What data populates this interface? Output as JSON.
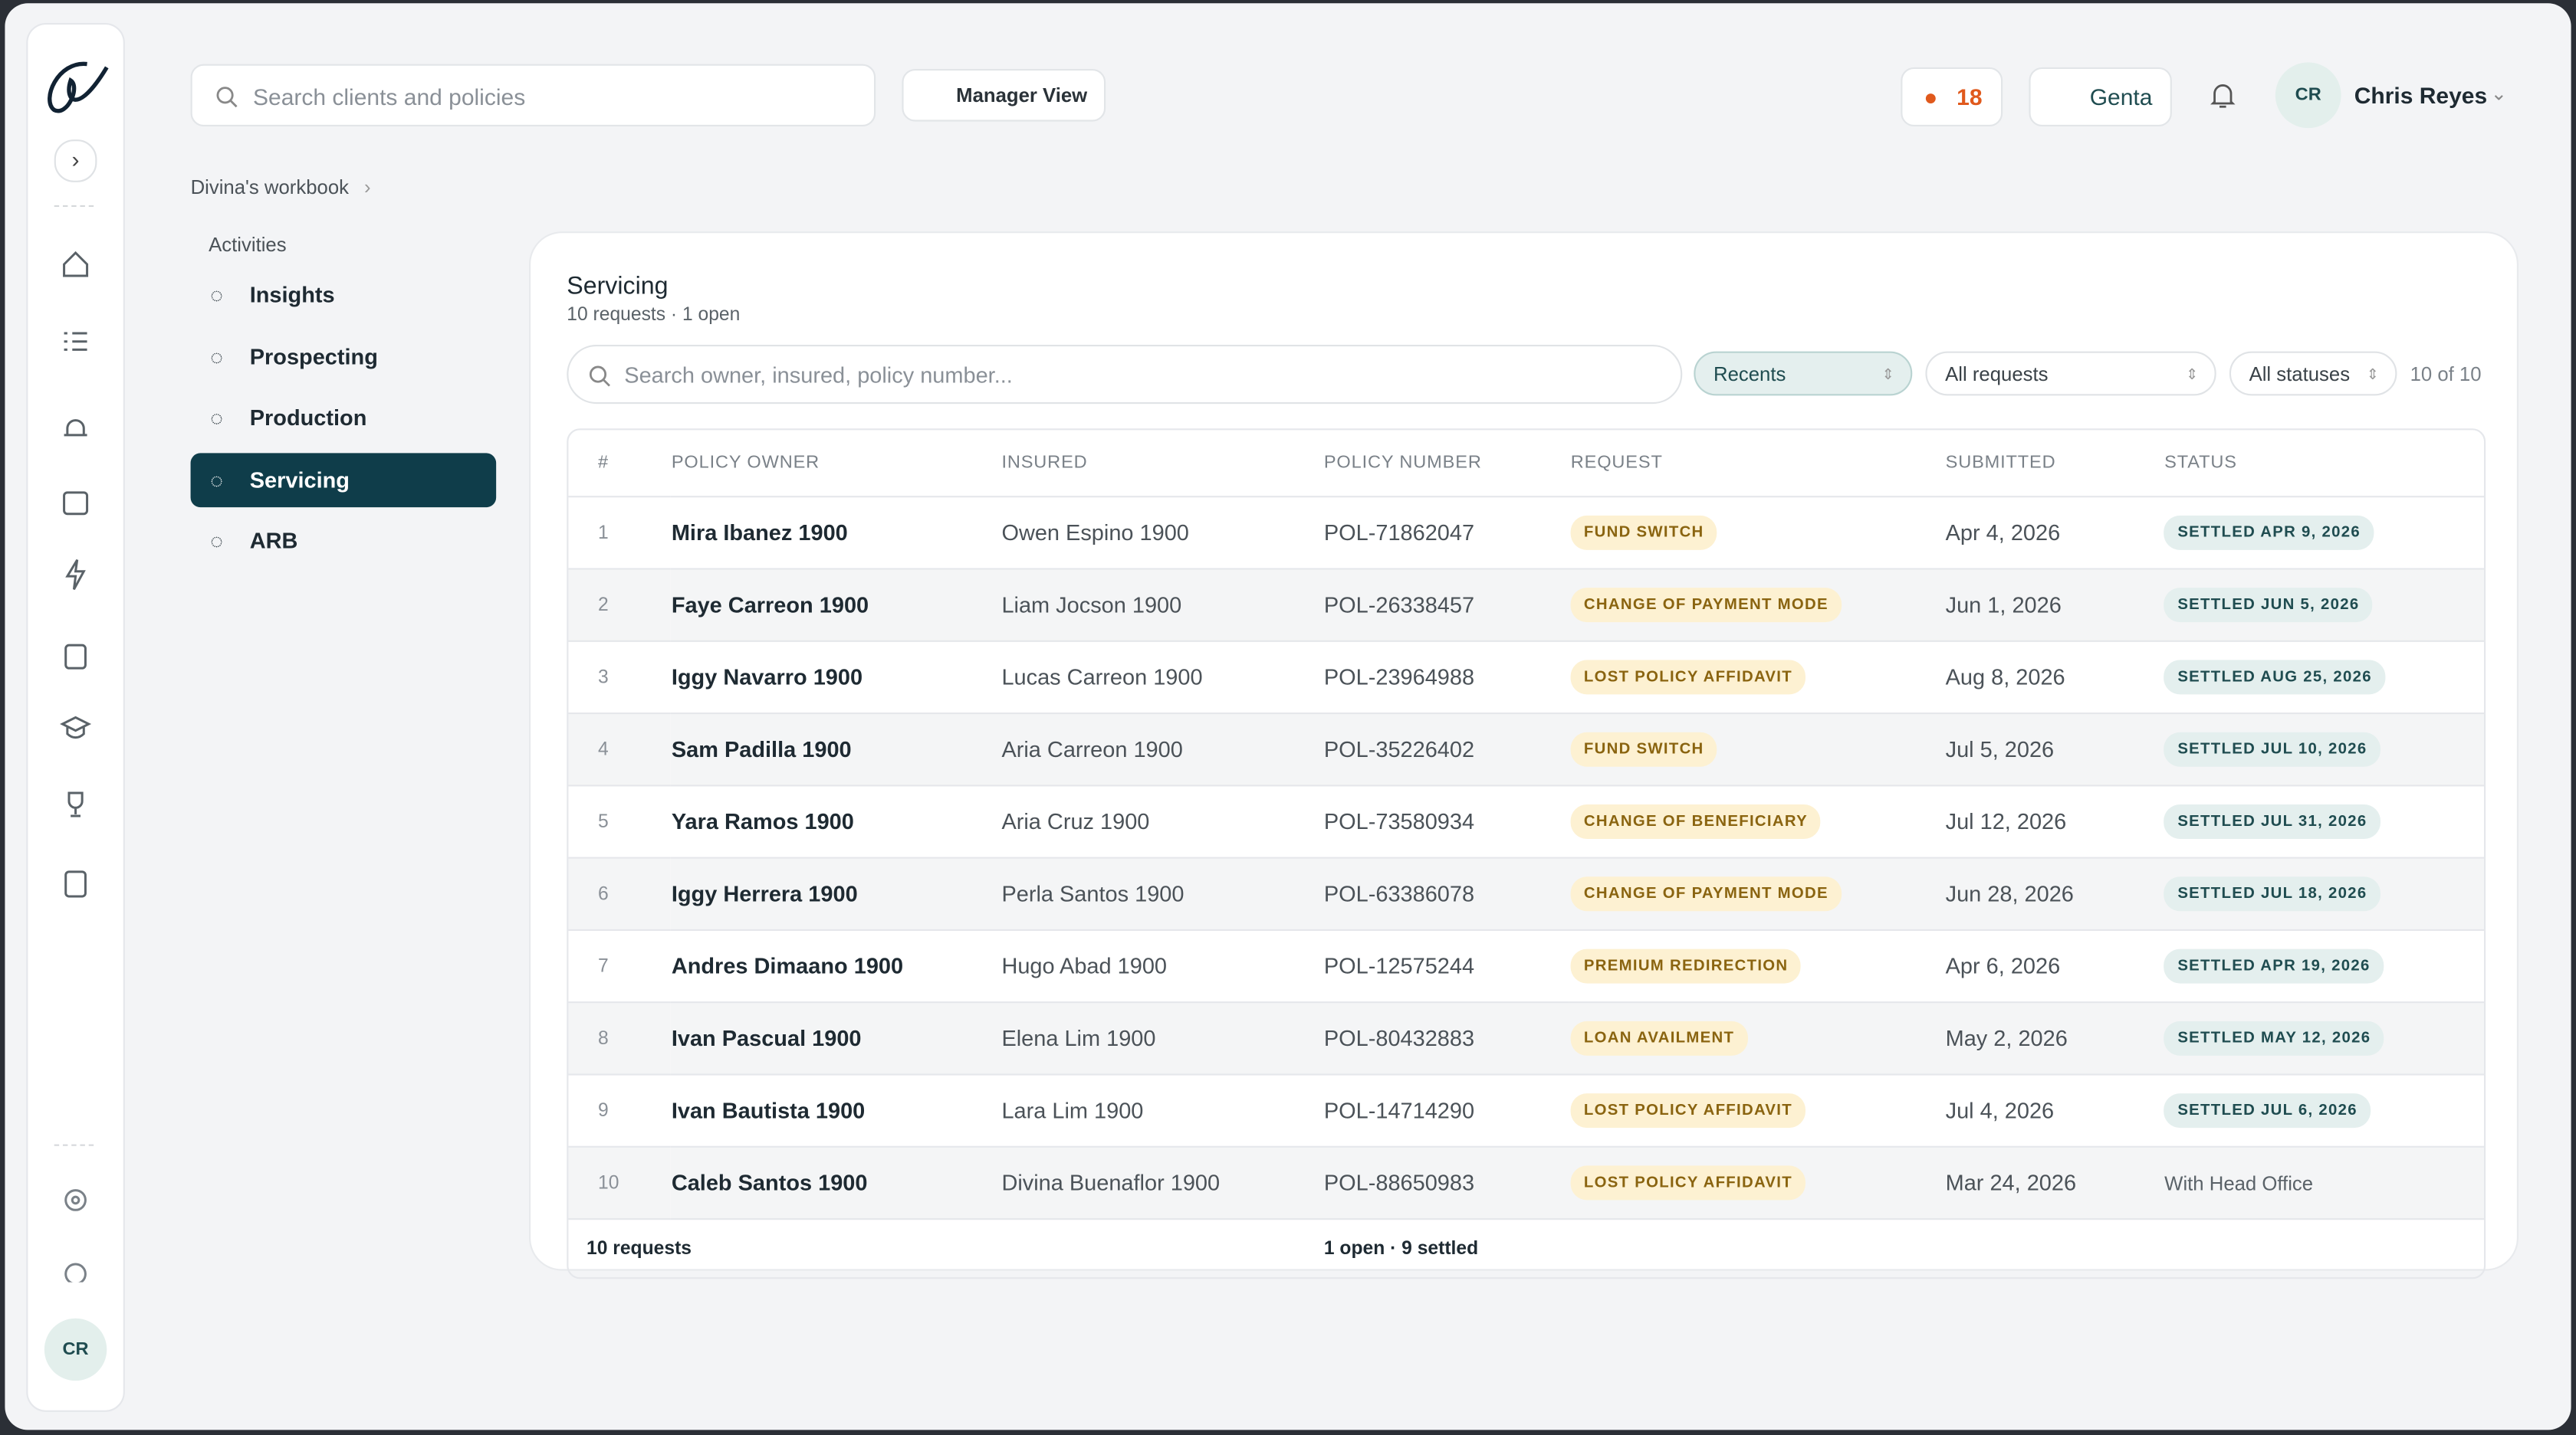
{
  "header": {
    "search_placeholder": "Search clients and policies",
    "manager_view": "Manager View",
    "streak": "18",
    "assistant": "Genta",
    "user_initials": "CR",
    "user_name": "Chris Reyes"
  },
  "rail": {
    "user_initials": "CR"
  },
  "breadcrumb": "Divina's workbook",
  "nav": {
    "section": "Activities",
    "items": [
      "Insights",
      "Prospecting",
      "Production",
      "Servicing",
      "ARB"
    ]
  },
  "panel": {
    "title": "Servicing",
    "subtitle": "10 requests · 1 open",
    "search_placeholder": "Search owner, insured, policy number...",
    "filters": [
      "Recents",
      "All requests",
      "All statuses"
    ],
    "count": "10 of 10",
    "table": {
      "headers": [
        "#",
        "POLICY OWNER",
        "INSURED",
        "POLICY NUMBER",
        "REQUEST",
        "SUBMITTED",
        "STATUS"
      ],
      "rows": [
        {
          "n": "1",
          "owner": "Mira Ibanez 1900",
          "insured": "Owen Espino 1900",
          "policy": "POL-71862047",
          "request": "FUND SWITCH",
          "submitted": "Apr 4, 2026",
          "status": {
            "settled": "SETTLED APR 9, 2026"
          }
        },
        {
          "n": "2",
          "owner": "Faye Carreon 1900",
          "insured": "Liam Jocson 1900",
          "policy": "POL-26338457",
          "request": "CHANGE OF PAYMENT MODE",
          "submitted": "Jun 1, 2026",
          "status": {
            "settled": "SETTLED JUN 5, 2026"
          }
        },
        {
          "n": "3",
          "owner": "Iggy Navarro 1900",
          "insured": "Lucas Carreon 1900",
          "policy": "POL-23964988",
          "request": "LOST POLICY AFFIDAVIT",
          "submitted": "Aug 8, 2026",
          "status": {
            "settled": "SETTLED AUG 25, 2026"
          }
        },
        {
          "n": "4",
          "owner": "Sam Padilla 1900",
          "insured": "Aria Carreon 1900",
          "policy": "POL-35226402",
          "request": "FUND SWITCH",
          "submitted": "Jul 5, 2026",
          "status": {
            "settled": "SETTLED JUL 10, 2026"
          }
        },
        {
          "n": "5",
          "owner": "Yara Ramos 1900",
          "insured": "Aria Cruz 1900",
          "policy": "POL-73580934",
          "request": "CHANGE OF BENEFICIARY",
          "submitted": "Jul 12, 2026",
          "status": {
            "settled": "SETTLED JUL 31, 2026"
          }
        },
        {
          "n": "6",
          "owner": "Iggy Herrera 1900",
          "insured": "Perla Santos 1900",
          "policy": "POL-63386078",
          "request": "CHANGE OF PAYMENT MODE",
          "submitted": "Jun 28, 2026",
          "status": {
            "settled": "SETTLED JUL 18, 2026"
          }
        },
        {
          "n": "7",
          "owner": "Andres Dimaano 1900",
          "insured": "Hugo Abad 1900",
          "policy": "POL-12575244",
          "request": "PREMIUM REDIRECTION",
          "submitted": "Apr 6, 2026",
          "status": {
            "settled": "SETTLED APR 19, 2026"
          }
        },
        {
          "n": "8",
          "owner": "Ivan Pascual 1900",
          "insured": "Elena Lim 1900",
          "policy": "POL-80432883",
          "request": "LOAN AVAILMENT",
          "submitted": "May 2, 2026",
          "status": {
            "settled": "SETTLED MAY 12, 2026"
          }
        },
        {
          "n": "9",
          "owner": "Ivan Bautista 1900",
          "insured": "Lara Lim 1900",
          "policy": "POL-14714290",
          "request": "LOST POLICY AFFIDAVIT",
          "submitted": "Jul 4, 2026",
          "status": {
            "settled": "SETTLED JUL 6, 2026"
          }
        },
        {
          "n": "10",
          "owner": "Caleb Santos 1900",
          "insured": "Divina Buenaflor 1900",
          "policy": "POL-88650983",
          "request": "LOST POLICY AFFIDAVIT",
          "submitted": "Mar 24, 2026",
          "status": {
            "open": "With Head Office"
          }
        }
      ],
      "footer": [
        "10 requests",
        "1 open · 9 settled"
      ]
    }
  }
}
